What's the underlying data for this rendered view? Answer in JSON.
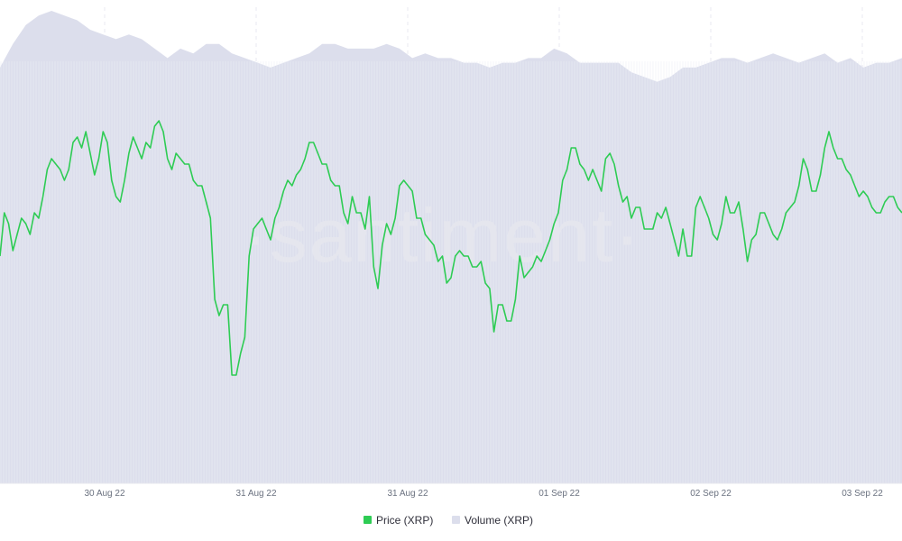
{
  "watermark": "·santiment·",
  "chart_data": {
    "type": "line",
    "title": "",
    "xlabel": "",
    "ylabel": "",
    "grid": true,
    "legend_position": "bottom-center",
    "x_ticks": [
      "30 Aug 22",
      "31 Aug 22",
      "31 Aug 22",
      "01 Sep 22",
      "02 Sep 22",
      "03 Sep 22"
    ],
    "colors": {
      "price": "#2ecc54",
      "volume": "#dcdeec"
    },
    "series": [
      {
        "name": "Price (XRP)",
        "kind": "line",
        "values": [
          66,
          74,
          72,
          67,
          70,
          73,
          72,
          70,
          74,
          73,
          77,
          82,
          84,
          83,
          82,
          80,
          82,
          87,
          88,
          86,
          89,
          85,
          81,
          84,
          89,
          87,
          80,
          77,
          76,
          80,
          85,
          88,
          86,
          84,
          87,
          86,
          90,
          91,
          89,
          84,
          82,
          85,
          84,
          83,
          83,
          80,
          79,
          79,
          76,
          73,
          58,
          55,
          57,
          57,
          44,
          44,
          48,
          51,
          66,
          71,
          72,
          73,
          71,
          69,
          73,
          75,
          78,
          80,
          79,
          81,
          82,
          84,
          87,
          87,
          85,
          83,
          83,
          80,
          79,
          79,
          74,
          72,
          77,
          74,
          74,
          71,
          77,
          64,
          60,
          68,
          72,
          70,
          73,
          79,
          80,
          79,
          78,
          73,
          73,
          70,
          69,
          68,
          65,
          66,
          61,
          62,
          66,
          67,
          66,
          66,
          64,
          64,
          65,
          61,
          60,
          52,
          57,
          57,
          54,
          54,
          58,
          66,
          62,
          63,
          64,
          66,
          65,
          67,
          69,
          72,
          74,
          80,
          82,
          86,
          86,
          83,
          82,
          80,
          82,
          80,
          78,
          84,
          85,
          83,
          79,
          76,
          77,
          73,
          75,
          75,
          71,
          71,
          71,
          74,
          73,
          75,
          72,
          69,
          66,
          71,
          66,
          66,
          75,
          77,
          75,
          73,
          70,
          69,
          72,
          77,
          74,
          74,
          76,
          71,
          65,
          69,
          70,
          74,
          74,
          72,
          70,
          69,
          71,
          74,
          75,
          76,
          79,
          84,
          82,
          78,
          78,
          81,
          86,
          89,
          86,
          84,
          84,
          82,
          81,
          79,
          77,
          78,
          77,
          75,
          74,
          74,
          76,
          77,
          77,
          75,
          74
        ],
        "note": "relative level read from the rendered line; the chart prints no price axis"
      },
      {
        "name": "Volume (XRP)",
        "kind": "area",
        "values": [
          88,
          93,
          97,
          99,
          100,
          99,
          98,
          96,
          95,
          94,
          95,
          94,
          92,
          90,
          92,
          91,
          93,
          93,
          91,
          90,
          89,
          88,
          89,
          90,
          91,
          93,
          93,
          92,
          92,
          92,
          93,
          92,
          90,
          91,
          90,
          90,
          89,
          89,
          88,
          89,
          89,
          90,
          90,
          92,
          91,
          89,
          89,
          89,
          89,
          87,
          86,
          85,
          86,
          88,
          88,
          89,
          90,
          90,
          89,
          90,
          91,
          90,
          89,
          90,
          91,
          89,
          90,
          88,
          89,
          89,
          90
        ],
        "note": "relative level read from the rendered area; the chart prints no volume axis"
      }
    ]
  },
  "legend": [
    {
      "label": "Price (XRP)",
      "color": "#2ecc54"
    },
    {
      "label": "Volume (XRP)",
      "color": "#dcdeec"
    }
  ]
}
